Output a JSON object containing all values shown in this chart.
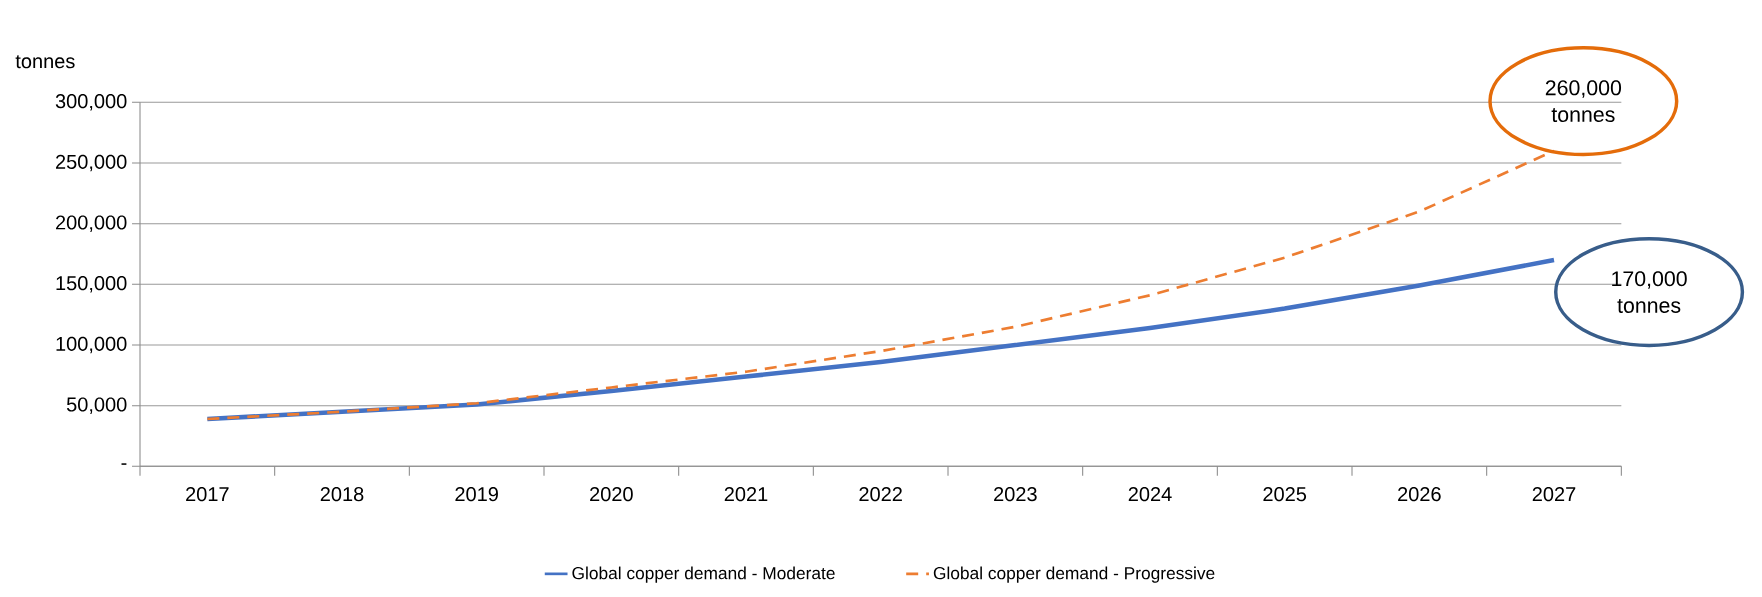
{
  "chart_data": {
    "type": "line",
    "ylabel": "tonnes",
    "categories": [
      "2017",
      "2018",
      "2019",
      "2020",
      "2021",
      "2022",
      "2023",
      "2024",
      "2025",
      "2026",
      "2027"
    ],
    "series": [
      {
        "name": "Global copper demand -  Moderate",
        "color": "#4472c4",
        "line_style": "solid",
        "values": [
          39000,
          45000,
          51000,
          62000,
          74000,
          86000,
          100000,
          114000,
          130000,
          149000,
          170000
        ]
      },
      {
        "name": "Global copper demand - Progressive",
        "color": "#ed7d31",
        "line_style": "dashed",
        "values": [
          39000,
          45000,
          52000,
          65000,
          78000,
          95000,
          115000,
          141000,
          172000,
          210000,
          260000
        ]
      }
    ],
    "ylim": [
      0,
      300000
    ],
    "yticks": [
      {
        "value": 0,
        "label": "-"
      },
      {
        "value": 50000,
        "label": "50,000"
      },
      {
        "value": 100000,
        "label": "100,000"
      },
      {
        "value": 150000,
        "label": "150,000"
      },
      {
        "value": 200000,
        "label": "200,000"
      },
      {
        "value": 250000,
        "label": "250,000"
      },
      {
        "value": 300000,
        "label": "300,000"
      }
    ],
    "grid": "y",
    "legend": "bottom",
    "marker": "none",
    "annotations": [
      {
        "text": "260,000 tonnes",
        "x": "2027",
        "y": 260000
      },
      {
        "text": "170,000 tonnes",
        "x": "2027",
        "y": 170000
      }
    ]
  }
}
